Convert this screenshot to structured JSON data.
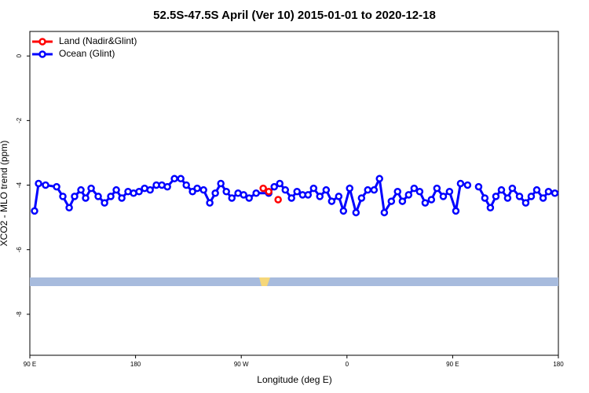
{
  "chart_data": {
    "type": "line",
    "title": "52.5S-47.5S April (Ver 10)   2015-01-01 to 2020-12-18",
    "x_label": "Longitude (deg E)",
    "y_label": "XCO2 - MLO trend (ppm)",
    "xlim": [
      90,
      540
    ],
    "ylim": [
      -9.27,
      0.76
    ],
    "xticks": [
      {
        "value": 90,
        "label": "90 E"
      },
      {
        "value": 180,
        "label": "180"
      },
      {
        "value": 270,
        "label": "90 W"
      },
      {
        "value": 360,
        "label": "0"
      },
      {
        "value": 450,
        "label": "90 E"
      },
      {
        "value": 540,
        "label": "180"
      }
    ],
    "yticks": [
      0,
      -2,
      -4,
      -6,
      -8
    ],
    "legend": "top-left",
    "series": [
      {
        "name": "Land (Nadir&Glint)",
        "color": "#ff0000",
        "x": [
          288.7,
          293.4,
          297.0,
          301.4
        ],
        "values": [
          -4.1,
          -4.2,
          null,
          -4.45
        ]
      },
      {
        "name": "Ocean (Glint)",
        "color": "#0000ff",
        "x": [
          94.0,
          97.4,
          103.4,
          112.8,
          118.1,
          123.5,
          128.1,
          133.5,
          137.5,
          142.2,
          148.2,
          153.6,
          158.9,
          163.6,
          168.3,
          173.6,
          178.3,
          183.0,
          187.7,
          192.4,
          197.7,
          202.4,
          207.1,
          213.1,
          218.5,
          223.2,
          228.5,
          232.5,
          237.9,
          243.2,
          247.9,
          252.6,
          257.3,
          262.0,
          267.3,
          272.0,
          276.7,
          282.7,
          293.4,
          298.1,
          302.8,
          307.5,
          312.8,
          317.5,
          322.2,
          326.9,
          331.6,
          336.9,
          342.3,
          347.0,
          353.0,
          357.0,
          362.3,
          367.7,
          372.4,
          377.7,
          383.1,
          387.7,
          391.8,
          397.8,
          403.1,
          407.2,
          412.5,
          417.2,
          421.9,
          426.6,
          431.9,
          436.6,
          442.0,
          447.3,
          452.7,
          456.7,
          462.7,
          467.4,
          472.1,
          477.4,
          482.1,
          486.8,
          491.5,
          496.8,
          500.8,
          506.9,
          512.2,
          516.9,
          521.6,
          527.0,
          531.6,
          537.0
        ],
        "values": [
          -4.8,
          -3.95,
          -4.0,
          -4.05,
          -4.35,
          -4.7,
          -4.35,
          -4.15,
          -4.4,
          -4.1,
          -4.35,
          -4.55,
          -4.35,
          -4.15,
          -4.4,
          -4.2,
          -4.25,
          -4.2,
          -4.1,
          -4.15,
          -4.0,
          -4.0,
          -4.05,
          -3.8,
          -3.8,
          -4.0,
          -4.2,
          -4.1,
          -4.15,
          -4.55,
          -4.25,
          -3.95,
          -4.2,
          -4.4,
          -4.25,
          -4.3,
          -4.4,
          -4.25,
          -4.25,
          -4.05,
          -3.95,
          -4.15,
          -4.4,
          -4.2,
          -4.3,
          -4.3,
          -4.1,
          -4.35,
          -4.15,
          -4.5,
          -4.35,
          -4.8,
          -4.1,
          -4.85,
          -4.4,
          -4.15,
          -4.15,
          -3.8,
          -4.85,
          -4.5,
          -4.2,
          -4.5,
          -4.3,
          -4.1,
          -4.2,
          -4.55,
          -4.45,
          -4.1,
          -4.35,
          -4.2,
          -4.8,
          -3.95,
          -4.0,
          null,
          -4.05,
          -4.4,
          -4.7,
          -4.35,
          -4.15,
          -4.4,
          -4.1,
          -4.35,
          -4.55,
          -4.35,
          -4.15,
          -4.4,
          -4.2,
          -4.25
        ]
      }
    ]
  }
}
